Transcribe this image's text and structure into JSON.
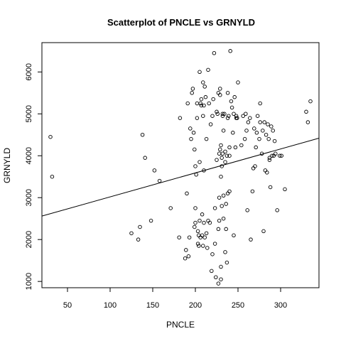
{
  "chart_data": {
    "type": "scatter",
    "title": "Scatterplot of PNCLE vs GRNYLD",
    "xlabel": "PNCLE",
    "ylabel": "GRNYLD",
    "xlim": [
      20,
      345
    ],
    "ylim": [
      850,
      6700
    ],
    "xticks": [
      50,
      100,
      150,
      200,
      250,
      300
    ],
    "yticks": [
      1000,
      2000,
      3000,
      4000,
      5000,
      6000
    ],
    "grid": false,
    "legend": "none",
    "fit_line": {
      "x": [
        20,
        345
      ],
      "y": [
        2560,
        4420
      ]
    },
    "points": [
      [
        30,
        4450
      ],
      [
        32,
        3500
      ],
      [
        125,
        2150
      ],
      [
        133,
        2000
      ],
      [
        135,
        2300
      ],
      [
        138,
        4500
      ],
      [
        141,
        3950
      ],
      [
        148,
        2450
      ],
      [
        152,
        3650
      ],
      [
        158,
        3400
      ],
      [
        171,
        2750
      ],
      [
        181,
        2050
      ],
      [
        182,
        4900
      ],
      [
        188,
        1550
      ],
      [
        189,
        1750
      ],
      [
        190,
        3100
      ],
      [
        191,
        5250
      ],
      [
        192,
        1600
      ],
      [
        193,
        2050
      ],
      [
        194,
        4650
      ],
      [
        195,
        4400
      ],
      [
        196,
        5500
      ],
      [
        197,
        5600
      ],
      [
        198,
        4550
      ],
      [
        199,
        4150
      ],
      [
        199,
        2300
      ],
      [
        200,
        2400
      ],
      [
        200,
        3750
      ],
      [
        200,
        2750
      ],
      [
        201,
        3550
      ],
      [
        202,
        4900
      ],
      [
        202,
        5250
      ],
      [
        203,
        1900
      ],
      [
        203,
        2200
      ],
      [
        204,
        2100
      ],
      [
        204,
        1850
      ],
      [
        205,
        3850
      ],
      [
        205,
        2450
      ],
      [
        205,
        6000
      ],
      [
        206,
        2050
      ],
      [
        206,
        5250
      ],
      [
        207,
        5350
      ],
      [
        207,
        5200
      ],
      [
        208,
        2100
      ],
      [
        208,
        2600
      ],
      [
        209,
        1850
      ],
      [
        209,
        5750
      ],
      [
        209,
        4950
      ],
      [
        210,
        2400
      ],
      [
        210,
        3650
      ],
      [
        210,
        5200
      ],
      [
        211,
        2050
      ],
      [
        211,
        5650
      ],
      [
        212,
        5400
      ],
      [
        213,
        4400
      ],
      [
        213,
        2150
      ],
      [
        214,
        1800
      ],
      [
        215,
        6050
      ],
      [
        215,
        2450
      ],
      [
        216,
        5250
      ],
      [
        217,
        2400
      ],
      [
        218,
        4750
      ],
      [
        219,
        1250
      ],
      [
        220,
        1650
      ],
      [
        220,
        4950
      ],
      [
        221,
        5350
      ],
      [
        222,
        6450
      ],
      [
        223,
        2750
      ],
      [
        223,
        1900
      ],
      [
        224,
        1100
      ],
      [
        225,
        3900
      ],
      [
        225,
        5050
      ],
      [
        226,
        5000
      ],
      [
        227,
        5500
      ],
      [
        227,
        2250
      ],
      [
        227,
        950
      ],
      [
        228,
        3000
      ],
      [
        228,
        2450
      ],
      [
        228,
        4050
      ],
      [
        229,
        4150
      ],
      [
        229,
        5600
      ],
      [
        229,
        5450
      ],
      [
        230,
        4250
      ],
      [
        230,
        3500
      ],
      [
        230,
        1350
      ],
      [
        230,
        1050
      ],
      [
        231,
        3950
      ],
      [
        231,
        2800
      ],
      [
        231,
        3750
      ],
      [
        232,
        4050
      ],
      [
        232,
        5000
      ],
      [
        232,
        4950
      ],
      [
        233,
        3050
      ],
      [
        233,
        4600
      ],
      [
        233,
        2500
      ],
      [
        234,
        5000
      ],
      [
        235,
        3850
      ],
      [
        235,
        4100
      ],
      [
        235,
        1700
      ],
      [
        236,
        2850
      ],
      [
        236,
        2250
      ],
      [
        237,
        1450
      ],
      [
        237,
        4000
      ],
      [
        238,
        4900
      ],
      [
        238,
        5500
      ],
      [
        238,
        3100
      ],
      [
        239,
        4950
      ],
      [
        240,
        4200
      ],
      [
        240,
        4000
      ],
      [
        240,
        3150
      ],
      [
        241,
        6500
      ],
      [
        242,
        5300
      ],
      [
        243,
        5150
      ],
      [
        244,
        4550
      ],
      [
        245,
        5000
      ],
      [
        245,
        2100
      ],
      [
        246,
        5400
      ],
      [
        247,
        4200
      ],
      [
        248,
        4900
      ],
      [
        248,
        4950
      ],
      [
        249,
        4900
      ],
      [
        250,
        5750
      ],
      [
        254,
        4250
      ],
      [
        256,
        4950
      ],
      [
        258,
        4400
      ],
      [
        259,
        5000
      ],
      [
        260,
        4600
      ],
      [
        261,
        2700
      ],
      [
        262,
        4800
      ],
      [
        264,
        4900
      ],
      [
        265,
        2000
      ],
      [
        267,
        3150
      ],
      [
        268,
        3700
      ],
      [
        269,
        4650
      ],
      [
        270,
        3750
      ],
      [
        271,
        4200
      ],
      [
        272,
        4550
      ],
      [
        273,
        4950
      ],
      [
        275,
        4400
      ],
      [
        276,
        4800
      ],
      [
        276,
        5250
      ],
      [
        278,
        4050
      ],
      [
        279,
        4600
      ],
      [
        280,
        2200
      ],
      [
        281,
        4800
      ],
      [
        282,
        3650
      ],
      [
        283,
        4500
      ],
      [
        284,
        3600
      ],
      [
        285,
        4750
      ],
      [
        286,
        4400
      ],
      [
        287,
        3950
      ],
      [
        287,
        3900
      ],
      [
        288,
        3250
      ],
      [
        289,
        4700
      ],
      [
        290,
        4000
      ],
      [
        291,
        4600
      ],
      [
        292,
        4000
      ],
      [
        293,
        4350
      ],
      [
        294,
        4050
      ],
      [
        296,
        2700
      ],
      [
        299,
        4000
      ],
      [
        301,
        4000
      ],
      [
        305,
        3200
      ],
      [
        330,
        5050
      ],
      [
        332,
        4800
      ],
      [
        335,
        5300
      ]
    ]
  }
}
